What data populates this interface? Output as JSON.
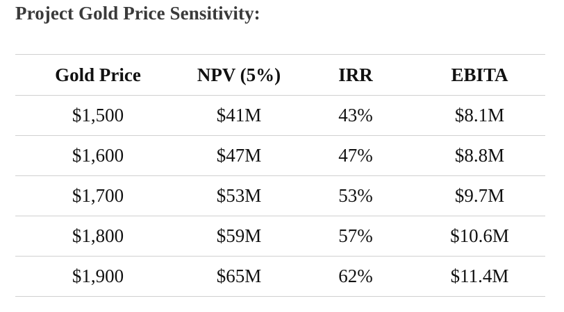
{
  "title": "Project Gold Price Sensitivity:",
  "table": {
    "headers": [
      "Gold Price",
      "NPV (5%)",
      "IRR",
      "EBITA"
    ],
    "rows": [
      [
        "$1,500",
        "$41M",
        "43%",
        "$8.1M"
      ],
      [
        "$1,600",
        "$47M",
        "47%",
        "$8.8M"
      ],
      [
        "$1,700",
        "$53M",
        "53%",
        "$9.7M"
      ],
      [
        "$1,800",
        "$59M",
        "57%",
        "$10.6M"
      ],
      [
        "$1,900",
        "$65M",
        "62%",
        "$11.4M"
      ]
    ]
  }
}
